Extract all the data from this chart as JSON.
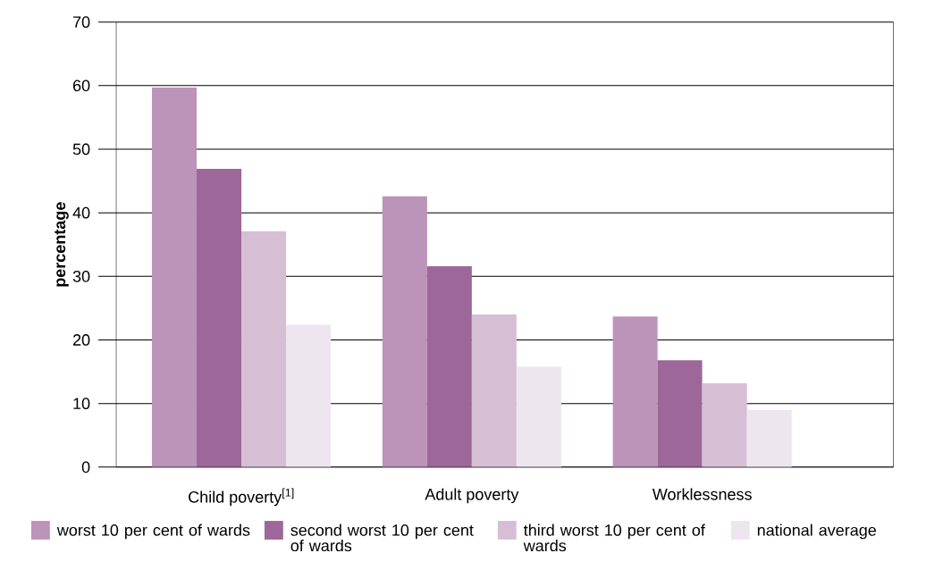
{
  "chart_data": {
    "type": "bar",
    "ylabel": "percentage",
    "categories": [
      "Child poverty$^{[1]}$",
      "Adult poverty",
      "Worklessness"
    ],
    "series": [
      {
        "name": "worst 10 per cent of wards",
        "color": "#bc93b9",
        "values": [
          59.7,
          42.6,
          23.7
        ]
      },
      {
        "name": "second worst 10 per cent of wards",
        "color": "#9d6799",
        "values": [
          46.9,
          31.6,
          16.8
        ]
      },
      {
        "name": "third worst 10 per cent of wards",
        "color": "#d6bfd5",
        "values": [
          37.1,
          24.0,
          13.2
        ]
      },
      {
        "name": "national average",
        "color": "#eee6ee",
        "values": [
          22.4,
          15.8,
          9.0
        ]
      }
    ],
    "ylim": [
      0,
      70
    ],
    "yticks": [
      0,
      10,
      20,
      30,
      40,
      50,
      60,
      70
    ],
    "grid": "y",
    "legend": "bottom"
  }
}
